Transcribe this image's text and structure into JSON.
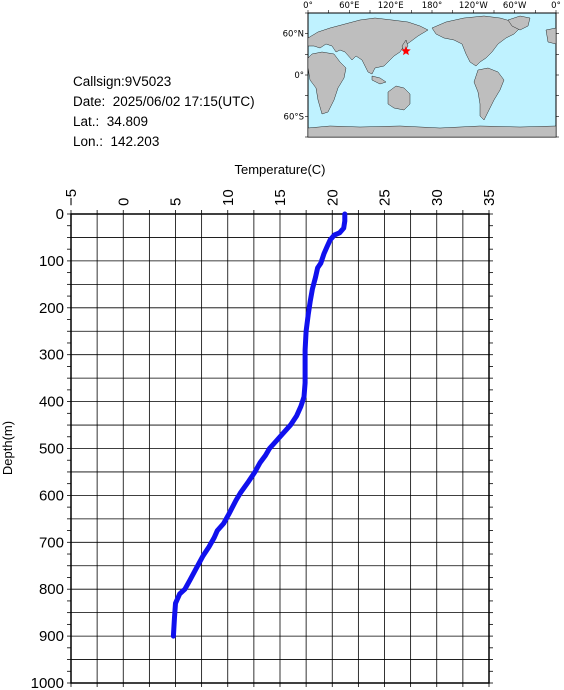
{
  "station": {
    "callsign": "Callsign:9V5023",
    "date": "Date:  2025/06/02 17:15(UTC)",
    "lat": "Lat.:  34.809",
    "lon": "Lon.:  142.203"
  },
  "map": {
    "ocean_color": "#bff2ff",
    "land_color": "#bebebe",
    "marker_color": "#ff0000",
    "marker": {
      "lon": 142.203,
      "lat": 34.809
    },
    "lon_labels": [
      "0°",
      "60°E",
      "120°E",
      "180°",
      "120°W",
      "60°W",
      "0°"
    ],
    "lat_labels": [
      "60°N",
      "0°",
      "60°S"
    ]
  },
  "chart_data": {
    "type": "line",
    "xlabel": "Temperature(C)",
    "ylabel": "Depth(m)",
    "xlim": [
      -5,
      35
    ],
    "ylim": [
      0,
      1000
    ],
    "y_inverted": true,
    "x_axis_position": "top",
    "x_ticks": [
      "-5",
      "0",
      "5",
      "10",
      "15",
      "20",
      "25",
      "30",
      "35"
    ],
    "y_ticks": [
      "0",
      "100",
      "200",
      "300",
      "400",
      "500",
      "600",
      "700",
      "800",
      "900",
      "1000"
    ],
    "grid": true,
    "series": [
      {
        "color": "#1010ee",
        "points": [
          [
            21.2,
            0
          ],
          [
            21.2,
            15
          ],
          [
            21.1,
            30
          ],
          [
            20.7,
            40
          ],
          [
            20.2,
            45
          ],
          [
            19.8,
            55
          ],
          [
            19.5,
            70
          ],
          [
            19.2,
            85
          ],
          [
            18.9,
            105
          ],
          [
            18.6,
            115
          ],
          [
            18.4,
            135
          ],
          [
            18.1,
            160
          ],
          [
            17.9,
            185
          ],
          [
            17.7,
            215
          ],
          [
            17.5,
            250
          ],
          [
            17.4,
            290
          ],
          [
            17.4,
            320
          ],
          [
            17.4,
            360
          ],
          [
            17.3,
            390
          ],
          [
            17.0,
            410
          ],
          [
            16.6,
            430
          ],
          [
            16.0,
            450
          ],
          [
            15.4,
            465
          ],
          [
            14.6,
            485
          ],
          [
            14.0,
            500
          ],
          [
            13.6,
            515
          ],
          [
            13.1,
            530
          ],
          [
            12.6,
            550
          ],
          [
            12.0,
            570
          ],
          [
            11.2,
            595
          ],
          [
            10.8,
            610
          ],
          [
            10.1,
            640
          ],
          [
            9.6,
            660
          ],
          [
            9.0,
            675
          ],
          [
            8.7,
            690
          ],
          [
            8.2,
            710
          ],
          [
            7.6,
            730
          ],
          [
            7.0,
            755
          ],
          [
            6.4,
            780
          ],
          [
            5.9,
            800
          ],
          [
            5.4,
            810
          ],
          [
            5.0,
            830
          ],
          [
            4.9,
            860
          ],
          [
            4.8,
            900
          ]
        ]
      }
    ]
  }
}
